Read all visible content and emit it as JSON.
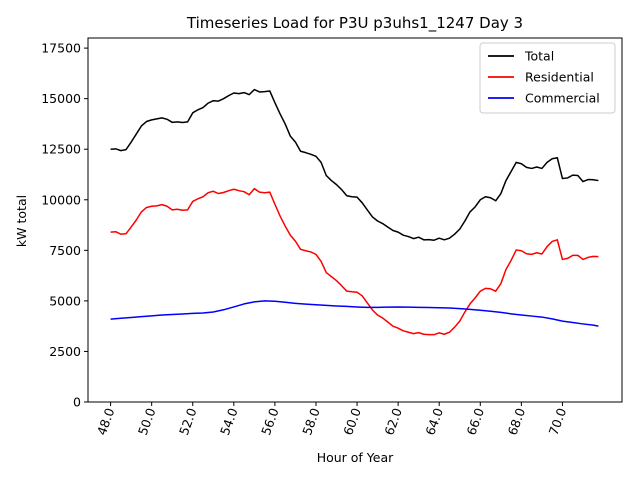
{
  "chart_data": {
    "type": "line",
    "title": "Timeseries Load for P3U p3uhs1_1247  Day 3",
    "xlabel": "Hour of Year",
    "ylabel": "kW total",
    "xlim": [
      46.9,
      72.9
    ],
    "ylim": [
      0,
      18000
    ],
    "xticks": [
      48,
      50,
      52,
      54,
      56,
      58,
      60,
      62,
      64,
      66,
      68,
      70
    ],
    "xtick_labels": [
      "48.0",
      "50.0",
      "52.0",
      "54.0",
      "56.0",
      "58.0",
      "60.0",
      "62.0",
      "64.0",
      "66.0",
      "68.0",
      "70.0"
    ],
    "yticks": [
      0,
      2500,
      5000,
      7500,
      10000,
      12500,
      15000,
      17500
    ],
    "ytick_labels": [
      "0",
      "2500",
      "5000",
      "7500",
      "10000",
      "12500",
      "15000",
      "17500"
    ],
    "grid": false,
    "legend_position": "top-right",
    "series": [
      {
        "name": "Total",
        "color": "#000000",
        "points": [
          [
            48.0,
            12500
          ],
          [
            48.25,
            12520
          ],
          [
            48.5,
            12430
          ],
          [
            48.75,
            12480
          ],
          [
            49.0,
            12850
          ],
          [
            49.25,
            13250
          ],
          [
            49.5,
            13650
          ],
          [
            49.75,
            13870
          ],
          [
            50.0,
            13950
          ],
          [
            50.25,
            14000
          ],
          [
            50.5,
            14050
          ],
          [
            50.75,
            13980
          ],
          [
            51.0,
            13830
          ],
          [
            51.25,
            13850
          ],
          [
            51.5,
            13820
          ],
          [
            51.75,
            13850
          ],
          [
            52.0,
            14300
          ],
          [
            52.25,
            14450
          ],
          [
            52.5,
            14560
          ],
          [
            52.75,
            14780
          ],
          [
            53.0,
            14900
          ],
          [
            53.25,
            14880
          ],
          [
            53.5,
            15000
          ],
          [
            53.75,
            15150
          ],
          [
            54.0,
            15280
          ],
          [
            54.25,
            15250
          ],
          [
            54.5,
            15300
          ],
          [
            54.75,
            15200
          ],
          [
            55.0,
            15450
          ],
          [
            55.25,
            15330
          ],
          [
            55.5,
            15350
          ],
          [
            55.75,
            15380
          ],
          [
            56.0,
            14800
          ],
          [
            56.25,
            14250
          ],
          [
            56.5,
            13750
          ],
          [
            56.75,
            13150
          ],
          [
            57.0,
            12850
          ],
          [
            57.25,
            12400
          ],
          [
            57.5,
            12330
          ],
          [
            57.75,
            12250
          ],
          [
            58.0,
            12150
          ],
          [
            58.25,
            11850
          ],
          [
            58.5,
            11200
          ],
          [
            58.75,
            10950
          ],
          [
            59.0,
            10750
          ],
          [
            59.25,
            10500
          ],
          [
            59.5,
            10200
          ],
          [
            59.75,
            10150
          ],
          [
            60.0,
            10130
          ],
          [
            60.25,
            9850
          ],
          [
            60.5,
            9500
          ],
          [
            60.75,
            9150
          ],
          [
            61.0,
            8950
          ],
          [
            61.25,
            8820
          ],
          [
            61.5,
            8650
          ],
          [
            61.75,
            8480
          ],
          [
            62.0,
            8400
          ],
          [
            62.25,
            8250
          ],
          [
            62.5,
            8180
          ],
          [
            62.75,
            8080
          ],
          [
            63.0,
            8150
          ],
          [
            63.25,
            8020
          ],
          [
            63.5,
            8030
          ],
          [
            63.75,
            8000
          ],
          [
            64.0,
            8100
          ],
          [
            64.25,
            8020
          ],
          [
            64.5,
            8100
          ],
          [
            64.75,
            8300
          ],
          [
            65.0,
            8550
          ],
          [
            65.25,
            8950
          ],
          [
            65.5,
            9400
          ],
          [
            65.75,
            9650
          ],
          [
            66.0,
            10000
          ],
          [
            66.25,
            10150
          ],
          [
            66.5,
            10100
          ],
          [
            66.75,
            9950
          ],
          [
            67.0,
            10300
          ],
          [
            67.25,
            10950
          ],
          [
            67.5,
            11400
          ],
          [
            67.75,
            11850
          ],
          [
            68.0,
            11780
          ],
          [
            68.25,
            11600
          ],
          [
            68.5,
            11550
          ],
          [
            68.75,
            11620
          ],
          [
            69.0,
            11550
          ],
          [
            69.25,
            11850
          ],
          [
            69.5,
            12030
          ],
          [
            69.75,
            12080
          ],
          [
            70.0,
            11050
          ],
          [
            70.25,
            11080
          ],
          [
            70.5,
            11220
          ],
          [
            70.75,
            11200
          ],
          [
            71.0,
            10900
          ],
          [
            71.25,
            11000
          ],
          [
            71.5,
            10990
          ],
          [
            71.75,
            10950
          ]
        ]
      },
      {
        "name": "Residential",
        "color": "#ff0000",
        "points": [
          [
            48.0,
            8400
          ],
          [
            48.25,
            8420
          ],
          [
            48.5,
            8300
          ],
          [
            48.75,
            8320
          ],
          [
            49.0,
            8650
          ],
          [
            49.25,
            9000
          ],
          [
            49.5,
            9400
          ],
          [
            49.75,
            9620
          ],
          [
            50.0,
            9680
          ],
          [
            50.25,
            9700
          ],
          [
            50.5,
            9760
          ],
          [
            50.75,
            9680
          ],
          [
            51.0,
            9500
          ],
          [
            51.25,
            9530
          ],
          [
            51.5,
            9480
          ],
          [
            51.75,
            9500
          ],
          [
            52.0,
            9920
          ],
          [
            52.25,
            10050
          ],
          [
            52.5,
            10150
          ],
          [
            52.75,
            10350
          ],
          [
            53.0,
            10420
          ],
          [
            53.25,
            10310
          ],
          [
            53.5,
            10360
          ],
          [
            53.75,
            10450
          ],
          [
            54.0,
            10520
          ],
          [
            54.25,
            10450
          ],
          [
            54.5,
            10400
          ],
          [
            54.75,
            10250
          ],
          [
            55.0,
            10550
          ],
          [
            55.25,
            10380
          ],
          [
            55.5,
            10350
          ],
          [
            55.75,
            10380
          ],
          [
            56.0,
            9780
          ],
          [
            56.25,
            9200
          ],
          [
            56.5,
            8700
          ],
          [
            56.75,
            8250
          ],
          [
            57.0,
            7950
          ],
          [
            57.25,
            7550
          ],
          [
            57.5,
            7480
          ],
          [
            57.75,
            7420
          ],
          [
            58.0,
            7300
          ],
          [
            58.25,
            6950
          ],
          [
            58.5,
            6400
          ],
          [
            58.75,
            6200
          ],
          [
            59.0,
            6000
          ],
          [
            59.25,
            5750
          ],
          [
            59.5,
            5480
          ],
          [
            59.75,
            5450
          ],
          [
            60.0,
            5430
          ],
          [
            60.25,
            5250
          ],
          [
            60.5,
            4900
          ],
          [
            60.75,
            4550
          ],
          [
            61.0,
            4300
          ],
          [
            61.25,
            4150
          ],
          [
            61.5,
            3950
          ],
          [
            61.75,
            3750
          ],
          [
            62.0,
            3650
          ],
          [
            62.25,
            3520
          ],
          [
            62.5,
            3450
          ],
          [
            62.75,
            3380
          ],
          [
            63.0,
            3430
          ],
          [
            63.25,
            3350
          ],
          [
            63.5,
            3330
          ],
          [
            63.75,
            3330
          ],
          [
            64.0,
            3420
          ],
          [
            64.25,
            3350
          ],
          [
            64.5,
            3450
          ],
          [
            64.75,
            3700
          ],
          [
            65.0,
            4000
          ],
          [
            65.25,
            4450
          ],
          [
            65.5,
            4850
          ],
          [
            65.75,
            5150
          ],
          [
            66.0,
            5480
          ],
          [
            66.25,
            5620
          ],
          [
            66.5,
            5600
          ],
          [
            66.75,
            5480
          ],
          [
            67.0,
            5850
          ],
          [
            67.25,
            6550
          ],
          [
            67.5,
            7000
          ],
          [
            67.75,
            7520
          ],
          [
            68.0,
            7480
          ],
          [
            68.25,
            7330
          ],
          [
            68.5,
            7300
          ],
          [
            68.75,
            7380
          ],
          [
            69.0,
            7320
          ],
          [
            69.25,
            7680
          ],
          [
            69.5,
            7940
          ],
          [
            69.75,
            8020
          ],
          [
            70.0,
            7050
          ],
          [
            70.25,
            7100
          ],
          [
            70.5,
            7250
          ],
          [
            70.75,
            7250
          ],
          [
            71.0,
            7050
          ],
          [
            71.25,
            7150
          ],
          [
            71.5,
            7200
          ],
          [
            71.75,
            7190
          ]
        ]
      },
      {
        "name": "Commercial",
        "color": "#0000ff",
        "points": [
          [
            48.0,
            4100
          ],
          [
            48.5,
            4140
          ],
          [
            49.0,
            4180
          ],
          [
            49.5,
            4220
          ],
          [
            50.0,
            4260
          ],
          [
            50.5,
            4300
          ],
          [
            51.0,
            4330
          ],
          [
            51.5,
            4350
          ],
          [
            52.0,
            4380
          ],
          [
            52.5,
            4400
          ],
          [
            53.0,
            4450
          ],
          [
            53.5,
            4560
          ],
          [
            54.0,
            4700
          ],
          [
            54.5,
            4850
          ],
          [
            55.0,
            4950
          ],
          [
            55.5,
            5000
          ],
          [
            56.0,
            4980
          ],
          [
            56.5,
            4930
          ],
          [
            57.0,
            4880
          ],
          [
            57.5,
            4840
          ],
          [
            58.0,
            4810
          ],
          [
            58.5,
            4780
          ],
          [
            59.0,
            4750
          ],
          [
            59.5,
            4730
          ],
          [
            60.0,
            4700
          ],
          [
            60.5,
            4680
          ],
          [
            61.0,
            4680
          ],
          [
            61.5,
            4690
          ],
          [
            62.0,
            4700
          ],
          [
            62.5,
            4690
          ],
          [
            63.0,
            4680
          ],
          [
            63.5,
            4670
          ],
          [
            64.0,
            4660
          ],
          [
            64.5,
            4650
          ],
          [
            65.0,
            4620
          ],
          [
            65.5,
            4580
          ],
          [
            66.0,
            4540
          ],
          [
            66.5,
            4490
          ],
          [
            67.0,
            4430
          ],
          [
            67.5,
            4360
          ],
          [
            68.0,
            4300
          ],
          [
            68.5,
            4250
          ],
          [
            69.0,
            4200
          ],
          [
            69.5,
            4110
          ],
          [
            70.0,
            4000
          ],
          [
            70.5,
            3930
          ],
          [
            71.0,
            3860
          ],
          [
            71.5,
            3800
          ],
          [
            71.75,
            3750
          ]
        ]
      }
    ]
  }
}
